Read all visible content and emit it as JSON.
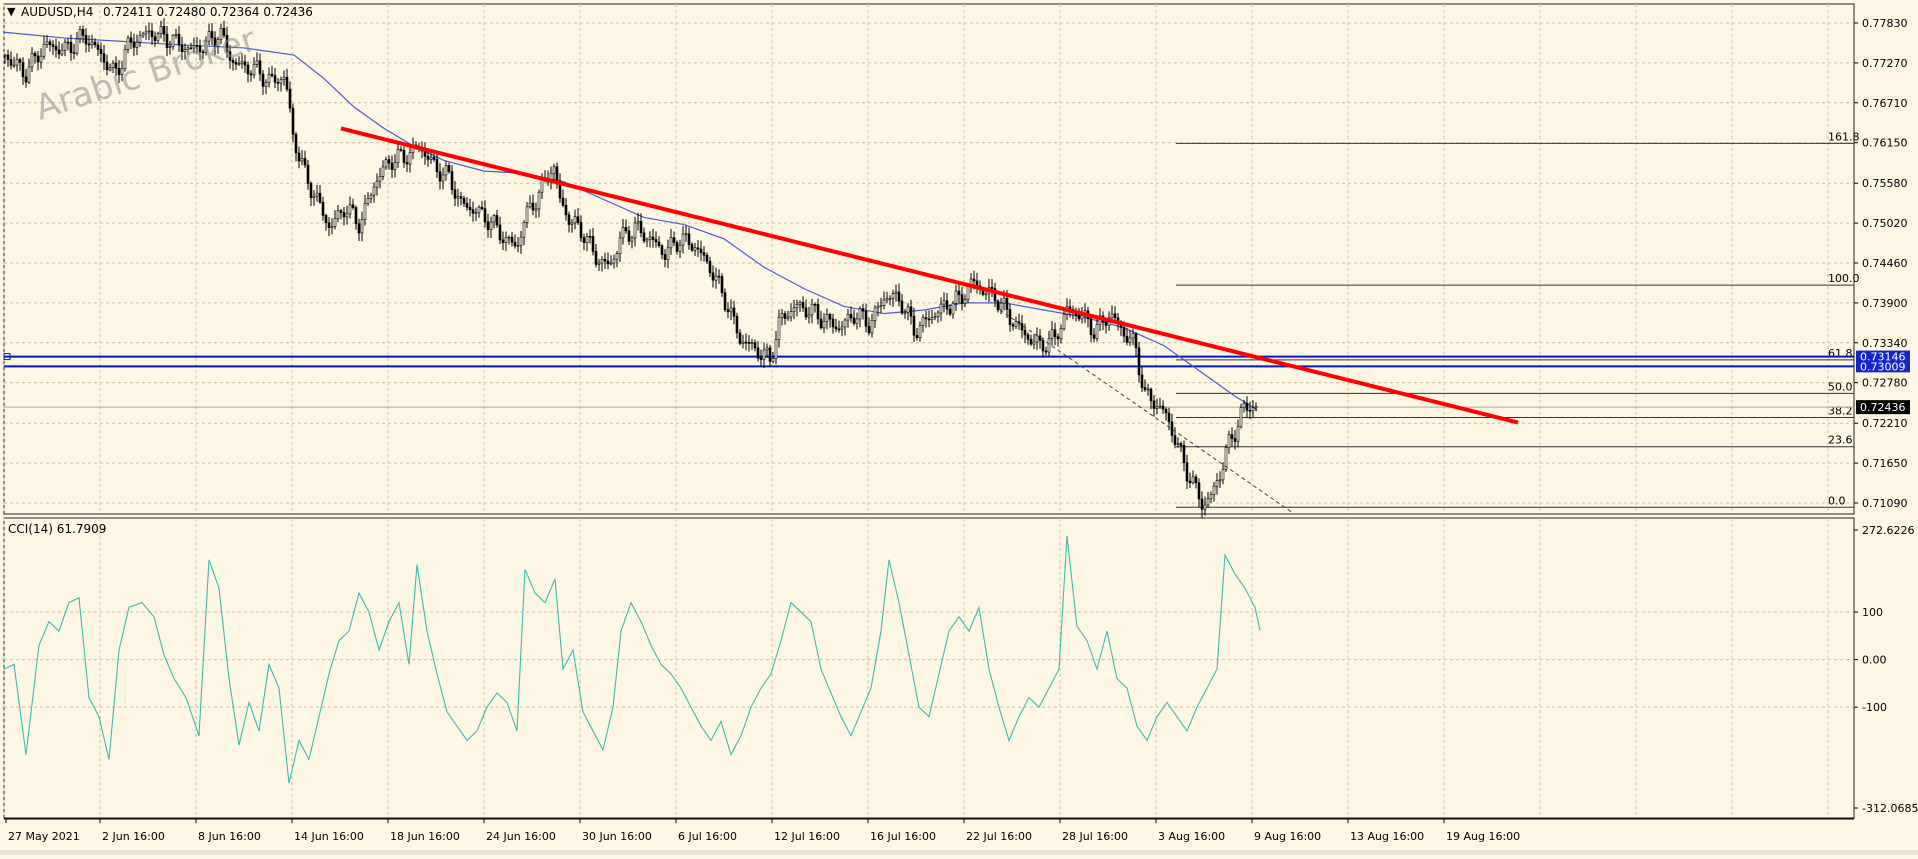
{
  "header": {
    "symbol": "AUDUSD,H4",
    "ohlc": "0.72411 0.72480 0.72364 0.72436"
  },
  "watermark": "Arabic Broker",
  "indicator": {
    "label": "CCI(14) 61.7909"
  },
  "colors": {
    "background": "#fdf6e3",
    "candle": "#000000",
    "ma_line": "#4a5cd0",
    "trendline": "#ff0000",
    "support_lines": "#0018c8",
    "cci_line": "#3cbcae",
    "grid": "#c8c0a8",
    "price_tag_bg": "#1426c8",
    "last_price_bg": "#000000"
  },
  "chart_data": [
    {
      "type": "candlestick",
      "symbol": "AUDUSD",
      "timeframe": "H4",
      "price_axis": {
        "ticks": [
          "0.77830",
          "0.77270",
          "0.76710",
          "0.76150",
          "0.75580",
          "0.75020",
          "0.74460",
          "0.73900",
          "0.73340",
          "0.72780",
          "0.72210",
          "0.71650",
          "0.71090"
        ],
        "range": [
          0.709,
          0.781
        ]
      },
      "time_axis": {
        "ticks": [
          "27 May 2021",
          "2 Jun 16:00",
          "8 Jun 16:00",
          "14 Jun 16:00",
          "18 Jun 16:00",
          "24 Jun 16:00",
          "30 Jun 16:00",
          "6 Jul 16:00",
          "12 Jul 16:00",
          "16 Jul 16:00",
          "22 Jul 16:00",
          "28 Jul 16:00",
          "3 Aug 16:00",
          "9 Aug 16:00",
          "13 Aug 16:00",
          "19 Aug 16:00"
        ]
      },
      "close_path": [
        [
          0,
          0.7738
        ],
        [
          20,
          0.7712
        ],
        [
          40,
          0.7752
        ],
        [
          60,
          0.7745
        ],
        [
          80,
          0.7765
        ],
        [
          95,
          0.774
        ],
        [
          110,
          0.771
        ],
        [
          125,
          0.7755
        ],
        [
          145,
          0.777
        ],
        [
          165,
          0.776
        ],
        [
          185,
          0.7745
        ],
        [
          200,
          0.7752
        ],
        [
          215,
          0.777
        ],
        [
          222,
          0.7745
        ],
        [
          230,
          0.7725
        ],
        [
          250,
          0.7718
        ],
        [
          265,
          0.77
        ],
        [
          280,
          0.7708
        ],
        [
          288,
          0.7625
        ],
        [
          300,
          0.757
        ],
        [
          315,
          0.7525
        ],
        [
          325,
          0.7495
        ],
        [
          340,
          0.7525
        ],
        [
          355,
          0.75
        ],
        [
          370,
          0.756
        ],
        [
          385,
          0.759
        ],
        [
          400,
          0.7595
        ],
        [
          415,
          0.761
        ],
        [
          430,
          0.758
        ],
        [
          445,
          0.7565
        ],
        [
          455,
          0.753
        ],
        [
          470,
          0.752
        ],
        [
          485,
          0.7505
        ],
        [
          500,
          0.748
        ],
        [
          512,
          0.7468
        ],
        [
          520,
          0.751
        ],
        [
          535,
          0.7545
        ],
        [
          548,
          0.7585
        ],
        [
          555,
          0.7535
        ],
        [
          565,
          0.7505
        ],
        [
          578,
          0.749
        ],
        [
          590,
          0.7455
        ],
        [
          605,
          0.744
        ],
        [
          615,
          0.748
        ],
        [
          630,
          0.7495
        ],
        [
          645,
          0.748
        ],
        [
          660,
          0.746
        ],
        [
          675,
          0.748
        ],
        [
          690,
          0.747
        ],
        [
          705,
          0.744
        ],
        [
          720,
          0.7395
        ],
        [
          735,
          0.734
        ],
        [
          750,
          0.7325
        ],
        [
          765,
          0.731
        ],
        [
          775,
          0.7365
        ],
        [
          790,
          0.7385
        ],
        [
          805,
          0.738
        ],
        [
          820,
          0.7365
        ],
        [
          835,
          0.7355
        ],
        [
          850,
          0.7375
        ],
        [
          865,
          0.736
        ],
        [
          880,
          0.74
        ],
        [
          895,
          0.7395
        ],
        [
          910,
          0.735
        ],
        [
          925,
          0.737
        ],
        [
          940,
          0.7385
        ],
        [
          955,
          0.7395
        ],
        [
          968,
          0.742
        ],
        [
          980,
          0.7405
        ],
        [
          990,
          0.74
        ],
        [
          1005,
          0.737
        ],
        [
          1020,
          0.7345
        ],
        [
          1035,
          0.733
        ],
        [
          1050,
          0.734
        ],
        [
          1062,
          0.738
        ],
        [
          1075,
          0.7375
        ],
        [
          1090,
          0.735
        ],
        [
          1105,
          0.7375
        ],
        [
          1118,
          0.735
        ],
        [
          1130,
          0.733
        ],
        [
          1140,
          0.726
        ],
        [
          1150,
          0.725
        ],
        [
          1160,
          0.7235
        ],
        [
          1170,
          0.72
        ],
        [
          1180,
          0.716
        ],
        [
          1190,
          0.713
        ],
        [
          1198,
          0.7105
        ],
        [
          1207,
          0.712
        ],
        [
          1215,
          0.715
        ],
        [
          1222,
          0.7185
        ],
        [
          1230,
          0.721
        ],
        [
          1238,
          0.724
        ],
        [
          1245,
          0.7245
        ],
        [
          1253,
          0.72436
        ]
      ],
      "moving_average": [
        [
          0,
          0.777
        ],
        [
          60,
          0.7762
        ],
        [
          120,
          0.7757
        ],
        [
          180,
          0.7752
        ],
        [
          240,
          0.7748
        ],
        [
          290,
          0.7738
        ],
        [
          320,
          0.7705
        ],
        [
          350,
          0.7665
        ],
        [
          380,
          0.7635
        ],
        [
          410,
          0.761
        ],
        [
          440,
          0.759
        ],
        [
          480,
          0.7575
        ],
        [
          520,
          0.7572
        ],
        [
          560,
          0.756
        ],
        [
          600,
          0.7535
        ],
        [
          640,
          0.751
        ],
        [
          680,
          0.75
        ],
        [
          720,
          0.748
        ],
        [
          760,
          0.744
        ],
        [
          800,
          0.741
        ],
        [
          840,
          0.7385
        ],
        [
          880,
          0.7375
        ],
        [
          920,
          0.738
        ],
        [
          960,
          0.739
        ],
        [
          1000,
          0.739
        ],
        [
          1040,
          0.738
        ],
        [
          1080,
          0.737
        ],
        [
          1120,
          0.7355
        ],
        [
          1160,
          0.733
        ],
        [
          1200,
          0.729
        ],
        [
          1230,
          0.726
        ],
        [
          1253,
          0.724
        ]
      ],
      "trendline": {
        "from": [
          341,
          0.7635
        ],
        "to": [
          1518,
          0.7222
        ]
      },
      "secondary_trendline": {
        "from": [
          1000,
          0.738
        ],
        "to": [
          1295,
          0.7093
        ]
      },
      "horizontal_levels": [
        {
          "label": "0.73146",
          "price": 0.73146
        },
        {
          "label": "0.73009",
          "price": 0.73009
        }
      ],
      "fibonacci": [
        {
          "label": "161.8",
          "price": 0.7614
        },
        {
          "label": "100.0",
          "price": 0.7415
        },
        {
          "label": "61.8",
          "price": 0.731
        },
        {
          "label": "50.0",
          "price": 0.7263
        },
        {
          "label": "38.2",
          "price": 0.7229
        },
        {
          "label": "23.6",
          "price": 0.7188
        },
        {
          "label": "0.0",
          "price": 0.7103
        }
      ],
      "last_price": {
        "label": "0.72436",
        "price": 0.72436
      }
    },
    {
      "type": "line",
      "title": "CCI(14) 61.7909",
      "y_axis": {
        "ticks": [
          "272.6226",
          "100",
          "0.00",
          "-100",
          "-312.0685"
        ],
        "range": [
          -312.0685,
          272.6226
        ]
      },
      "values": [
        [
          0,
          -20
        ],
        [
          10,
          -10
        ],
        [
          22,
          -200
        ],
        [
          35,
          30
        ],
        [
          45,
          80
        ],
        [
          55,
          60
        ],
        [
          65,
          120
        ],
        [
          75,
          130
        ],
        [
          85,
          -80
        ],
        [
          95,
          -120
        ],
        [
          105,
          -210
        ],
        [
          115,
          20
        ],
        [
          125,
          110
        ],
        [
          138,
          120
        ],
        [
          150,
          90
        ],
        [
          160,
          10
        ],
        [
          170,
          -40
        ],
        [
          182,
          -80
        ],
        [
          195,
          -160
        ],
        [
          205,
          210
        ],
        [
          215,
          150
        ],
        [
          225,
          -40
        ],
        [
          235,
          -180
        ],
        [
          245,
          -90
        ],
        [
          255,
          -150
        ],
        [
          265,
          -10
        ],
        [
          275,
          -60
        ],
        [
          285,
          -260
        ],
        [
          295,
          -170
        ],
        [
          305,
          -210
        ],
        [
          315,
          -120
        ],
        [
          325,
          -30
        ],
        [
          335,
          40
        ],
        [
          345,
          60
        ],
        [
          355,
          140
        ],
        [
          365,
          100
        ],
        [
          375,
          20
        ],
        [
          385,
          80
        ],
        [
          395,
          120
        ],
        [
          405,
          -10
        ],
        [
          413,
          200
        ],
        [
          423,
          60
        ],
        [
          433,
          -30
        ],
        [
          443,
          -110
        ],
        [
          453,
          -140
        ],
        [
          463,
          -170
        ],
        [
          473,
          -150
        ],
        [
          483,
          -100
        ],
        [
          493,
          -70
        ],
        [
          503,
          -90
        ],
        [
          513,
          -150
        ],
        [
          521,
          190
        ],
        [
          531,
          140
        ],
        [
          541,
          120
        ],
        [
          551,
          170
        ],
        [
          559,
          -20
        ],
        [
          569,
          20
        ],
        [
          579,
          -110
        ],
        [
          589,
          -150
        ],
        [
          599,
          -190
        ],
        [
          609,
          -100
        ],
        [
          617,
          60
        ],
        [
          627,
          120
        ],
        [
          637,
          80
        ],
        [
          647,
          30
        ],
        [
          657,
          -10
        ],
        [
          667,
          -30
        ],
        [
          677,
          -60
        ],
        [
          687,
          -100
        ],
        [
          697,
          -140
        ],
        [
          707,
          -170
        ],
        [
          717,
          -130
        ],
        [
          727,
          -200
        ],
        [
          737,
          -160
        ],
        [
          747,
          -100
        ],
        [
          757,
          -60
        ],
        [
          767,
          -30
        ],
        [
          777,
          40
        ],
        [
          787,
          120
        ],
        [
          797,
          100
        ],
        [
          807,
          80
        ],
        [
          817,
          -20
        ],
        [
          827,
          -70
        ],
        [
          837,
          -120
        ],
        [
          847,
          -160
        ],
        [
          857,
          -110
        ],
        [
          867,
          -60
        ],
        [
          877,
          60
        ],
        [
          885,
          210
        ],
        [
          895,
          120
        ],
        [
          905,
          10
        ],
        [
          915,
          -100
        ],
        [
          925,
          -120
        ],
        [
          935,
          -30
        ],
        [
          945,
          60
        ],
        [
          955,
          90
        ],
        [
          965,
          60
        ],
        [
          975,
          110
        ],
        [
          985,
          -20
        ],
        [
          995,
          -100
        ],
        [
          1005,
          -170
        ],
        [
          1015,
          -120
        ],
        [
          1025,
          -80
        ],
        [
          1035,
          -100
        ],
        [
          1045,
          -60
        ],
        [
          1055,
          -20
        ],
        [
          1063,
          260
        ],
        [
          1073,
          70
        ],
        [
          1083,
          40
        ],
        [
          1093,
          -20
        ],
        [
          1103,
          60
        ],
        [
          1113,
          -40
        ],
        [
          1123,
          -60
        ],
        [
          1133,
          -140
        ],
        [
          1143,
          -170
        ],
        [
          1153,
          -120
        ],
        [
          1163,
          -90
        ],
        [
          1173,
          -120
        ],
        [
          1183,
          -150
        ],
        [
          1193,
          -100
        ],
        [
          1203,
          -60
        ],
        [
          1213,
          -20
        ],
        [
          1221,
          220
        ],
        [
          1231,
          180
        ],
        [
          1241,
          150
        ],
        [
          1251,
          110
        ],
        [
          1256,
          62
        ]
      ]
    }
  ]
}
